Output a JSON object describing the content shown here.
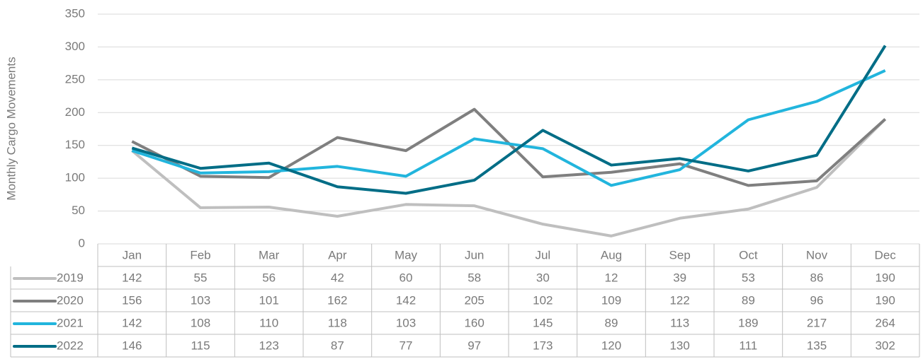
{
  "chart_data": {
    "type": "line",
    "y_label": "Monthly Cargo Movements",
    "categories": [
      "Jan",
      "Feb",
      "Mar",
      "Apr",
      "May",
      "Jun",
      "Jul",
      "Aug",
      "Sep",
      "Oct",
      "Nov",
      "Dec"
    ],
    "series": [
      {
        "name": "2019",
        "color": "#bfbfbf",
        "values": [
          142,
          55,
          56,
          42,
          60,
          58,
          30,
          12,
          39,
          53,
          86,
          190
        ]
      },
      {
        "name": "2020",
        "color": "#7f7f7f",
        "values": [
          156,
          103,
          101,
          162,
          142,
          205,
          102,
          109,
          122,
          89,
          96,
          190
        ]
      },
      {
        "name": "2021",
        "color": "#22b5dd",
        "values": [
          142,
          108,
          110,
          118,
          103,
          160,
          145,
          89,
          113,
          189,
          217,
          264
        ]
      },
      {
        "name": "2022",
        "color": "#006d86",
        "values": [
          146,
          115,
          123,
          87,
          77,
          97,
          173,
          120,
          130,
          111,
          135,
          302
        ]
      }
    ],
    "ylim": [
      0,
      350
    ],
    "yticks": [
      0,
      50,
      100,
      150,
      200,
      250,
      300,
      350
    ],
    "grid": true,
    "data_table": true
  }
}
